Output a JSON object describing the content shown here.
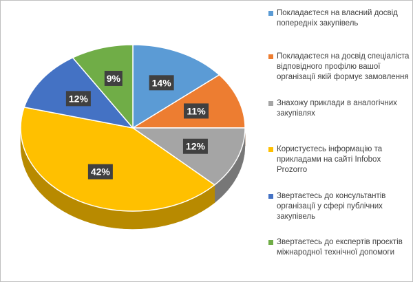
{
  "chart_data": {
    "type": "pie",
    "title": "",
    "categories": [
      "Покладаєтеся на власний досвід попередніх закупівель",
      "Покладаєтеся на досвід спеціаліста відповідного профілю вашої організації якій формує замовлення",
      "Знахожу приклади в аналогічних закупівлях",
      "Користуєтесь інформацію та прикладами на сайті Infobox Prozorro",
      "Звертаєтесь до консультантів організації у сфері публічних закупівель",
      "Звертаєтесь до експертів проєктів міжнародної технічної допомоги"
    ],
    "values": [
      14,
      11,
      12,
      42,
      12,
      9
    ],
    "data_labels": [
      "14%",
      "11%",
      "12%",
      "42%",
      "12%",
      "9%"
    ],
    "colors": [
      "#5b9bd5",
      "#ed7d31",
      "#a5a5a5",
      "#ffc000",
      "#4472c4",
      "#70ad47"
    ],
    "legend_position": "right",
    "style": "3d-pie"
  }
}
